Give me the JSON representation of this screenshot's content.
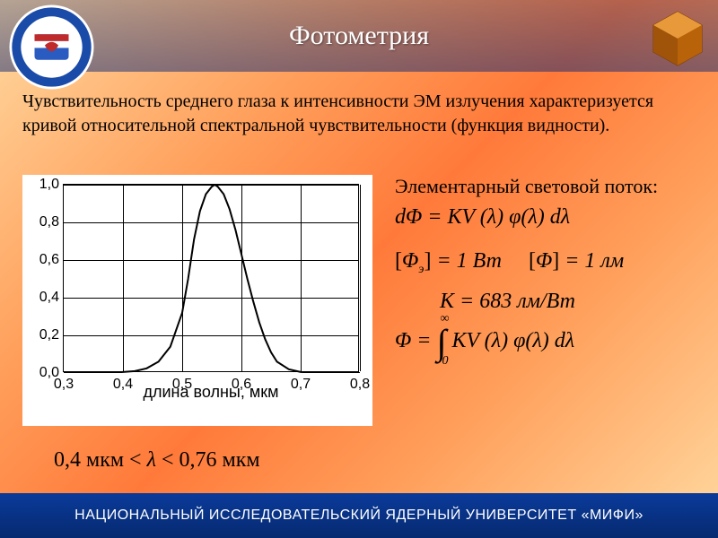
{
  "header": {
    "title": "Фотометрия"
  },
  "intro": "Чувствительность среднего глаза к интенсивности ЭМ излучения характеризуется кривой относительной спектральной чувствительности (функция видности).",
  "chart": {
    "type": "line",
    "background_color": "#ffffff",
    "grid_color": "#000000",
    "line_color": "#000000",
    "line_width": 2,
    "xlim": [
      0.3,
      0.8
    ],
    "ylim": [
      0.0,
      1.0
    ],
    "xticks": [
      0.3,
      0.4,
      0.5,
      0.6,
      0.7,
      0.8
    ],
    "xtick_labels": [
      "0,3",
      "0,4",
      "0,5",
      "0,6",
      "0,7",
      "0,8"
    ],
    "yticks": [
      0.0,
      0.2,
      0.4,
      0.6,
      0.8,
      1.0
    ],
    "ytick_labels": [
      "0,0",
      "0,2",
      "0,4",
      "0,6",
      "0,8",
      "1,0"
    ],
    "xlabel": "длина волны, мкм",
    "tick_fontsize": 16,
    "label_fontsize": 18,
    "data": [
      {
        "x": 0.3,
        "y": 0.0
      },
      {
        "x": 0.38,
        "y": 0.0
      },
      {
        "x": 0.4,
        "y": 0.005
      },
      {
        "x": 0.42,
        "y": 0.01
      },
      {
        "x": 0.44,
        "y": 0.025
      },
      {
        "x": 0.46,
        "y": 0.06
      },
      {
        "x": 0.48,
        "y": 0.14
      },
      {
        "x": 0.5,
        "y": 0.32
      },
      {
        "x": 0.51,
        "y": 0.5
      },
      {
        "x": 0.52,
        "y": 0.71
      },
      {
        "x": 0.53,
        "y": 0.86
      },
      {
        "x": 0.54,
        "y": 0.95
      },
      {
        "x": 0.55,
        "y": 0.99
      },
      {
        "x": 0.555,
        "y": 1.0
      },
      {
        "x": 0.56,
        "y": 0.99
      },
      {
        "x": 0.57,
        "y": 0.95
      },
      {
        "x": 0.58,
        "y": 0.87
      },
      {
        "x": 0.59,
        "y": 0.76
      },
      {
        "x": 0.6,
        "y": 0.63
      },
      {
        "x": 0.61,
        "y": 0.5
      },
      {
        "x": 0.62,
        "y": 0.38
      },
      {
        "x": 0.63,
        "y": 0.27
      },
      {
        "x": 0.64,
        "y": 0.18
      },
      {
        "x": 0.65,
        "y": 0.11
      },
      {
        "x": 0.66,
        "y": 0.06
      },
      {
        "x": 0.68,
        "y": 0.02
      },
      {
        "x": 0.7,
        "y": 0.005
      },
      {
        "x": 0.75,
        "y": 0.0
      },
      {
        "x": 0.8,
        "y": 0.0
      }
    ]
  },
  "right": {
    "flux_label": "Элементарный световой поток:",
    "dPhi": "dΦ = KV (λ) φ(λ) dλ",
    "unit_e_left": "[Φ",
    "unit_e_sub": "э",
    "unit_e_right": "] = 1 Вт",
    "unit_phi": "[Φ] = 1 лм",
    "K_const": "K = 683 лм/Вт",
    "integral_lhs": "Φ = ",
    "integral_upper": "∞",
    "integral_lower": "0",
    "integral_rhs": "KV (λ) φ(λ) dλ"
  },
  "range": {
    "left": "0,4 мкм < ",
    "mid": "λ",
    "right": " < 0,76 мкм"
  },
  "footer": "НАЦИОНАЛЬНЫЙ ИССЛЕДОВАТЕЛЬСКИЙ ЯДЕРНЫЙ УНИВЕРСИТЕТ «МИФИ»"
}
